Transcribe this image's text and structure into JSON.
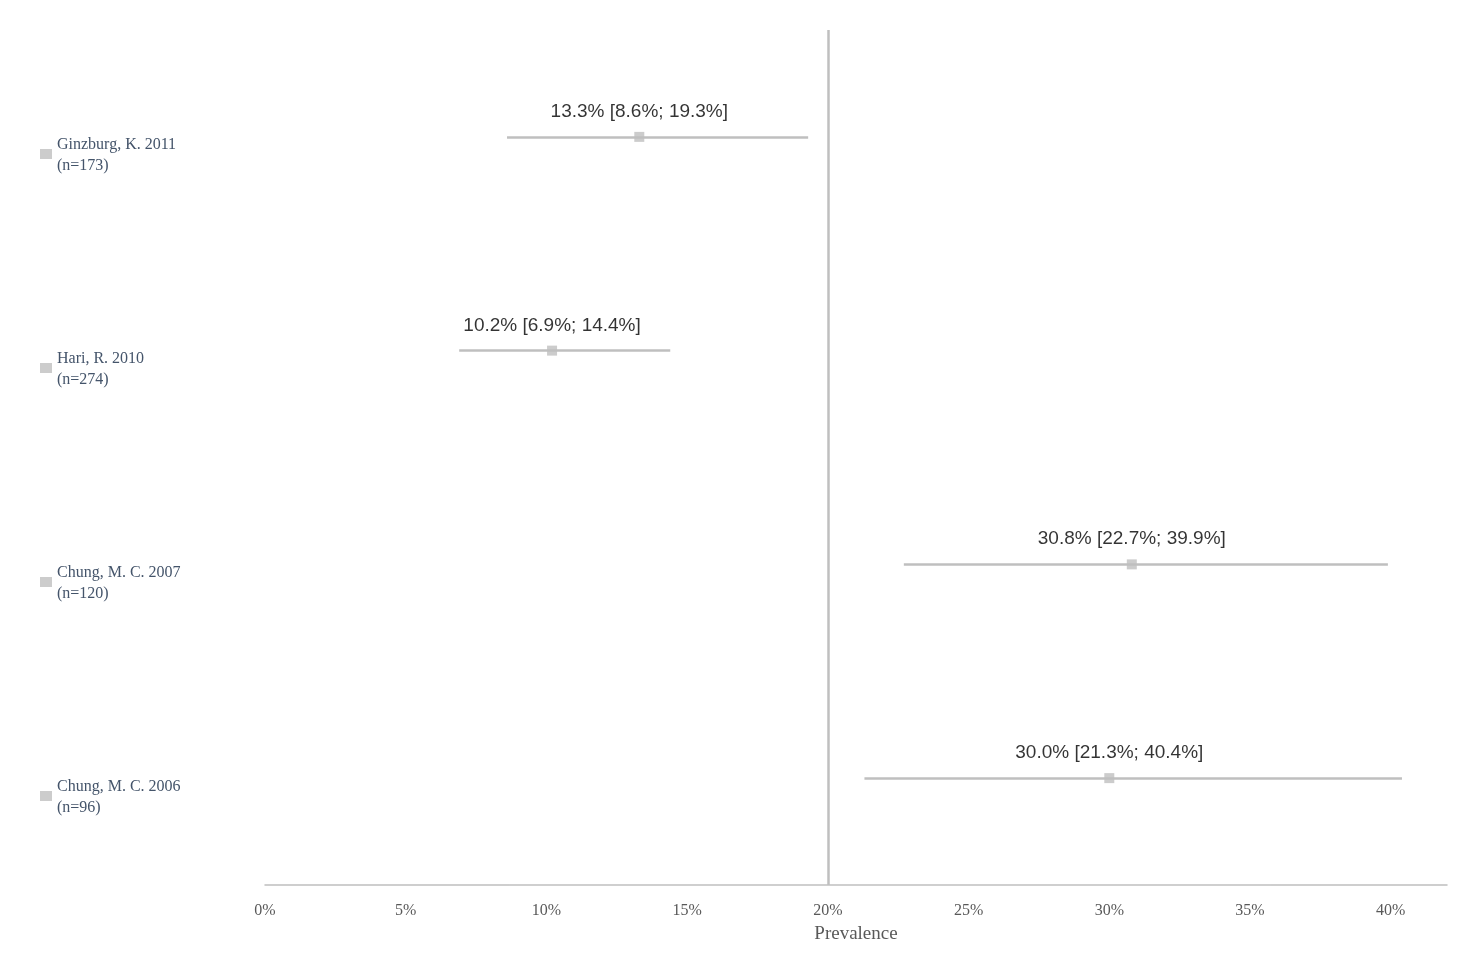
{
  "chart_data": {
    "type": "scatter",
    "orientation": "horizontal",
    "xlabel": "Prevalence",
    "categories": [
      null,
      null,
      null,
      null
    ],
    "series": [
      {
        "name": "Ginzburg, K. 2011\n(n=173)",
        "color": "#bfbfbf",
        "values": [
          13.3,
          null,
          null,
          null
        ],
        "errors": [
          [
            8.6,
            19.3
          ],
          null,
          null,
          null
        ],
        "value_labels": [
          "13.3% [8.6%; 19.3%]",
          null,
          null,
          null
        ]
      },
      {
        "name": "Hari, R. 2010\n(n=274)",
        "color": "#bfbfbf",
        "values": [
          null,
          10.2,
          null,
          null
        ],
        "errors": [
          null,
          [
            6.9,
            14.4
          ],
          null,
          null
        ],
        "value_labels": [
          null,
          "10.2% [6.9%; 14.4%]",
          null,
          null
        ]
      },
      {
        "name": "Chung, M. C. 2007\n(n=120)",
        "color": "#bfbfbf",
        "values": [
          null,
          null,
          30.8,
          null
        ],
        "errors": [
          null,
          null,
          [
            22.7,
            39.9
          ],
          null
        ],
        "value_labels": [
          null,
          null,
          "30.8% [22.7%; 39.9%]",
          null
        ]
      },
      {
        "name": "Chung, M. C. 2006\n(n=96)",
        "color": "#bfbfbf",
        "values": [
          null,
          null,
          null,
          30.0
        ],
        "errors": [
          null,
          null,
          null,
          [
            21.3,
            40.4
          ]
        ],
        "value_labels": [
          null,
          null,
          null,
          "30.0% [21.3%; 40.4%]"
        ]
      }
    ],
    "xlim": [
      0,
      42
    ],
    "xticks": [
      {
        "value": 0,
        "label": "0%"
      },
      {
        "value": 5,
        "label": "5%"
      },
      {
        "value": 10,
        "label": "10%"
      },
      {
        "value": 15,
        "label": "15%"
      },
      {
        "value": 20,
        "label": "20%"
      },
      {
        "value": 25,
        "label": "25%"
      },
      {
        "value": 30,
        "label": "30%"
      },
      {
        "value": 35,
        "label": "35%"
      },
      {
        "value": 40,
        "label": "40%"
      }
    ],
    "ref_lines": [
      {
        "axis": "x",
        "value": 20,
        "label": null,
        "color": "#bfbfbf",
        "line_style": "solid"
      }
    ],
    "grid": false,
    "legend": "left",
    "marker": "square",
    "tick_labels": "x"
  }
}
